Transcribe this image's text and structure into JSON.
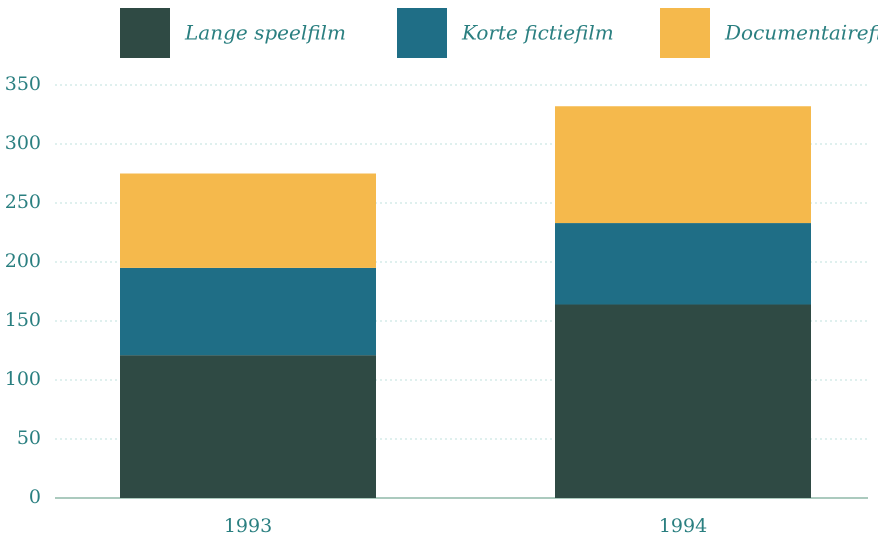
{
  "chart_data": {
    "type": "stacked_bar",
    "categories": [
      "1993",
      "1994"
    ],
    "series": [
      {
        "name": "Lange speelfilm",
        "color": "#2f4a44",
        "values": [
          121,
          164
        ]
      },
      {
        "name": "Korte fictiefilm",
        "color": "#1f6e86",
        "values": [
          74,
          69
        ]
      },
      {
        "name": "Documentairefilm",
        "color": "#f5b94c",
        "values": [
          80,
          99
        ]
      }
    ],
    "ylim": [
      0,
      350
    ],
    "yticks": [
      0,
      50,
      100,
      150,
      200,
      250,
      300,
      350
    ],
    "grid": true,
    "legend": "top"
  }
}
